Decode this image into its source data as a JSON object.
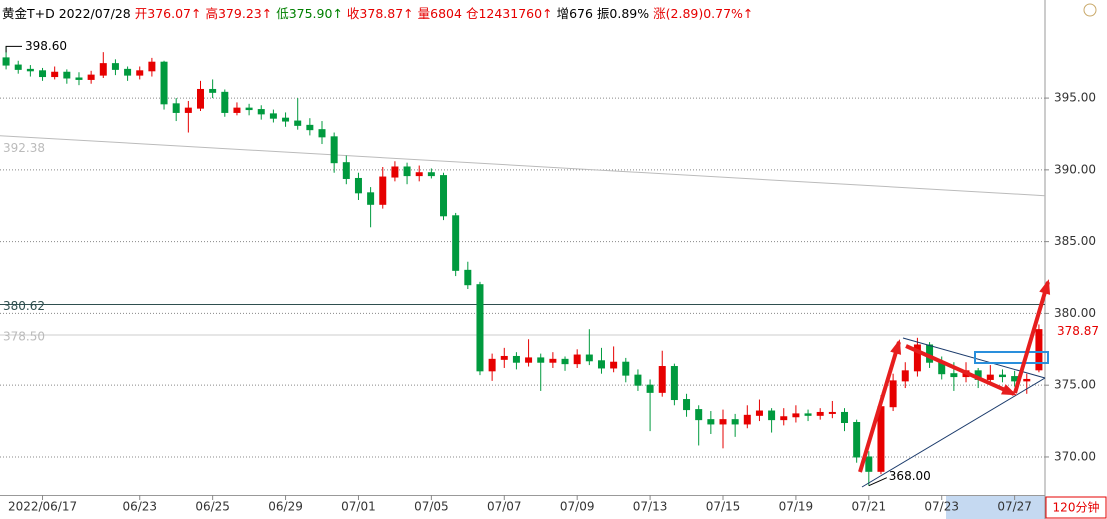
{
  "chart_data": {
    "type": "candlestick",
    "header": [
      {
        "text": "黄金T+D 2022/07/28",
        "color": "#000000"
      },
      {
        "text": "开376.07↑",
        "color": "#e60000"
      },
      {
        "text": "高379.23↑",
        "color": "#e60000"
      },
      {
        "text": "低375.90↑",
        "color": "#008000"
      },
      {
        "text": "收378.87↑",
        "color": "#e60000"
      },
      {
        "text": "量6804",
        "color": "#e60000"
      },
      {
        "text": "仓12431760↑",
        "color": "#e60000"
      },
      {
        "text": "增676",
        "color": "#000000"
      },
      {
        "text": "振0.89%",
        "color": "#000000"
      },
      {
        "text": "涨(2.89)0.77%↑",
        "color": "#e60000"
      }
    ],
    "period": "120分钟",
    "categories": [
      null,
      null,
      null,
      "2022/06/17",
      null,
      null,
      null,
      null,
      null,
      null,
      null,
      "06/23",
      null,
      null,
      null,
      null,
      null,
      "06/25",
      null,
      null,
      null,
      null,
      null,
      "06/29",
      null,
      null,
      null,
      null,
      null,
      "07/01",
      null,
      null,
      null,
      null,
      null,
      "07/05",
      null,
      null,
      null,
      null,
      null,
      "07/07",
      null,
      null,
      null,
      null,
      null,
      "07/09",
      null,
      null,
      null,
      null,
      null,
      "07/13",
      null,
      null,
      null,
      null,
      null,
      "07/15",
      null,
      null,
      null,
      null,
      null,
      "07/19",
      null,
      null,
      null,
      null,
      null,
      "07/21",
      null,
      null,
      null,
      null,
      null,
      "07/23",
      null,
      null,
      null,
      null,
      null,
      "07/27",
      null,
      null
    ],
    "open": [
      397.8,
      397.3,
      397.0,
      396.9,
      396.5,
      396.8,
      396.4,
      396.3,
      396.6,
      397.4,
      397.0,
      396.6,
      396.9,
      397.5,
      394.6,
      394.0,
      394.3,
      395.6,
      395.4,
      394.0,
      394.3,
      394.2,
      393.9,
      393.6,
      393.4,
      393.1,
      392.8,
      392.3,
      390.5,
      389.4,
      388.4,
      387.6,
      389.5,
      390.2,
      389.6,
      389.8,
      389.6,
      386.8,
      383.0,
      382.0,
      376.0,
      376.8,
      377.0,
      376.6,
      376.9,
      376.6,
      376.8,
      376.5,
      377.1,
      376.7,
      376.2,
      376.6,
      375.7,
      375.0,
      374.5,
      376.3,
      374.0,
      373.3,
      372.6,
      372.3,
      372.6,
      372.3,
      372.9,
      373.2,
      372.6,
      372.8,
      373.0,
      372.9,
      373.1,
      373.1,
      372.4,
      370.0,
      369.0,
      373.5,
      375.3,
      376.0,
      377.8,
      376.6,
      375.8,
      375.6,
      376.0,
      375.4,
      375.7,
      375.6,
      375.3,
      376.07
    ],
    "high": [
      398.6,
      397.6,
      397.3,
      397.1,
      397.2,
      397.0,
      396.8,
      396.9,
      398.2,
      397.7,
      397.2,
      397.2,
      397.8,
      397.6,
      395.0,
      394.8,
      396.2,
      396.3,
      395.6,
      394.7,
      394.6,
      394.5,
      394.2,
      394.0,
      395.0,
      393.6,
      393.4,
      392.6,
      391.0,
      389.8,
      388.8,
      390.2,
      390.6,
      390.5,
      390.3,
      390.1,
      389.8,
      387.0,
      383.6,
      382.2,
      377.2,
      377.6,
      377.3,
      378.2,
      377.2,
      377.3,
      377.0,
      377.5,
      378.9,
      377.6,
      377.7,
      376.9,
      376.1,
      375.4,
      377.4,
      376.5,
      374.4,
      373.6,
      373.2,
      373.3,
      373.0,
      373.6,
      374.0,
      373.4,
      373.4,
      373.6,
      373.3,
      373.4,
      373.9,
      373.4,
      372.6,
      370.4,
      374.3,
      375.8,
      376.6,
      378.3,
      378.0,
      377.0,
      376.6,
      376.6,
      376.2,
      376.4,
      376.1,
      376.0,
      375.8,
      379.23
    ],
    "low": [
      397.0,
      396.7,
      396.5,
      396.2,
      396.3,
      396.0,
      395.9,
      396.0,
      396.4,
      396.6,
      396.2,
      396.3,
      396.5,
      394.2,
      393.4,
      392.6,
      394.1,
      395.0,
      393.7,
      393.8,
      393.8,
      393.5,
      393.3,
      393.0,
      392.8,
      392.4,
      391.8,
      389.8,
      389.0,
      387.9,
      386.0,
      387.3,
      389.2,
      389.0,
      389.2,
      389.4,
      386.5,
      382.6,
      381.7,
      375.7,
      375.3,
      376.2,
      376.1,
      376.3,
      374.6,
      376.2,
      376.0,
      376.2,
      376.4,
      375.8,
      375.9,
      375.2,
      374.6,
      371.8,
      374.2,
      373.6,
      372.8,
      370.8,
      371.6,
      370.6,
      371.4,
      372.0,
      372.5,
      371.7,
      372.2,
      372.4,
      372.5,
      372.6,
      372.7,
      371.8,
      369.6,
      368.0,
      368.8,
      373.2,
      374.8,
      375.6,
      376.2,
      375.4,
      374.6,
      375.2,
      374.8,
      375.0,
      375.2,
      374.9,
      374.4,
      375.9
    ],
    "close": [
      397.3,
      397.0,
      396.9,
      396.5,
      396.8,
      396.4,
      396.3,
      396.6,
      397.4,
      397.0,
      396.6,
      396.9,
      397.5,
      394.6,
      394.0,
      394.3,
      395.6,
      395.4,
      394.0,
      394.3,
      394.2,
      393.9,
      393.6,
      393.4,
      393.1,
      392.8,
      392.3,
      390.5,
      389.4,
      388.4,
      387.6,
      389.5,
      390.2,
      389.6,
      389.8,
      389.6,
      386.8,
      383.0,
      382.0,
      376.0,
      376.8,
      377.0,
      376.6,
      376.9,
      376.6,
      376.8,
      376.5,
      377.1,
      376.7,
      376.2,
      376.6,
      375.7,
      375.0,
      374.5,
      376.3,
      374.0,
      373.3,
      372.6,
      372.3,
      372.6,
      372.3,
      372.9,
      373.2,
      372.6,
      372.8,
      373.0,
      372.9,
      373.1,
      373.1,
      372.4,
      370.0,
      369.0,
      373.5,
      375.3,
      376.0,
      377.8,
      376.6,
      375.8,
      375.6,
      376.0,
      375.4,
      375.7,
      375.6,
      375.3,
      375.4,
      378.87
    ],
    "up_color": "#e60000",
    "down_color": "#009a3e",
    "ylim": [
      367.35,
      400.3
    ],
    "yticks": [
      {
        "value": 370,
        "label": "370.00"
      },
      {
        "value": 375,
        "label": "375.00"
      },
      {
        "value": 380,
        "label": "380.00"
      },
      {
        "value": 385,
        "label": "385.00"
      },
      {
        "value": 390,
        "label": "390.00"
      },
      {
        "value": 395,
        "label": "395.00"
      }
    ],
    "grid": true,
    "reference_lines": [
      380.62,
      {
        "value": 378.5,
        "label": "378.50"
      }
    ],
    "trend_line": [
      {
        "value": 392.38,
        "label": "392.38"
      },
      388.2
    ],
    "high_mark": {
      "value": 398.6,
      "label": "398.60"
    },
    "low_mark": {
      "value": 368,
      "label": "368.00"
    },
    "last_price": 378.87
  }
}
